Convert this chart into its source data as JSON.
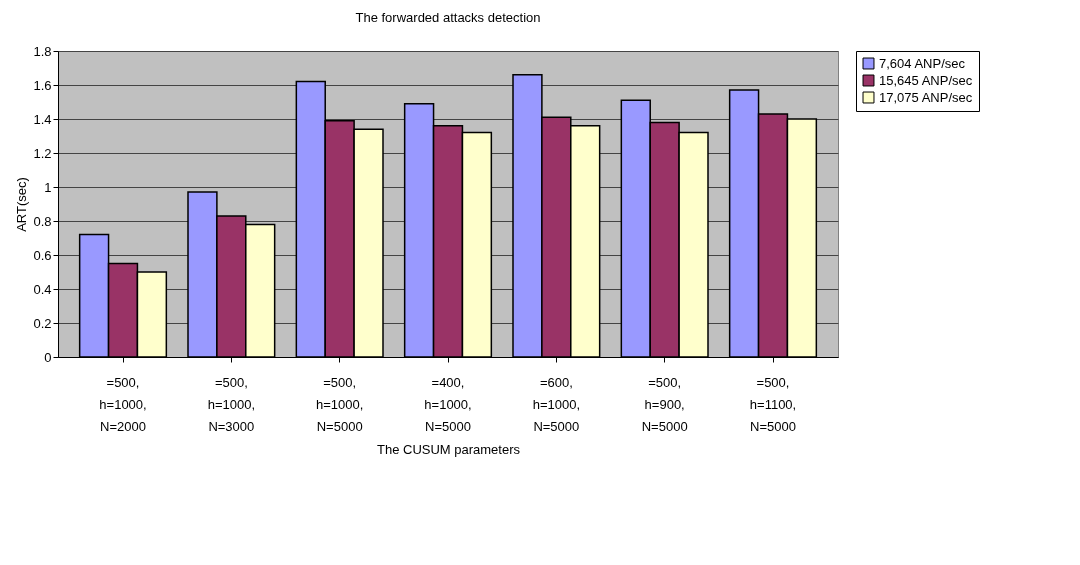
{
  "chart_data": {
    "type": "bar",
    "title": "The forwarded  attacks detection",
    "xlabel": "The CUSUM parameters",
    "ylabel": "ART(sec)",
    "categories": [
      "=500,\nh=1000,\nN=2000",
      "=500,\nh=1000,\nN=3000",
      "=500,\nh=1000,\nN=5000",
      "=400,\nh=1000,\nN=5000",
      "=600,\nh=1000,\nN=5000",
      "=500,\nh=900,\nN=5000",
      "=500,\nh=1100,\nN=5000"
    ],
    "series": [
      {
        "name": "7,604 ANP/sec",
        "color": "#9999ff",
        "values": [
          0.72,
          0.97,
          1.62,
          1.49,
          1.66,
          1.51,
          1.57
        ]
      },
      {
        "name": "15,645 ANP/sec",
        "color": "#993366",
        "values": [
          0.55,
          0.83,
          1.39,
          1.36,
          1.41,
          1.38,
          1.43
        ]
      },
      {
        "name": "17,075 ANP/sec",
        "color": "#ffffcc",
        "values": [
          0.5,
          0.78,
          1.34,
          1.32,
          1.36,
          1.32,
          1.4
        ]
      }
    ],
    "ylim": [
      0,
      1.8
    ],
    "yticks": [
      0,
      0.2,
      0.4,
      0.6,
      0.8,
      1,
      1.2,
      1.4,
      1.6,
      1.8
    ],
    "grid": "y",
    "legend": "right"
  }
}
